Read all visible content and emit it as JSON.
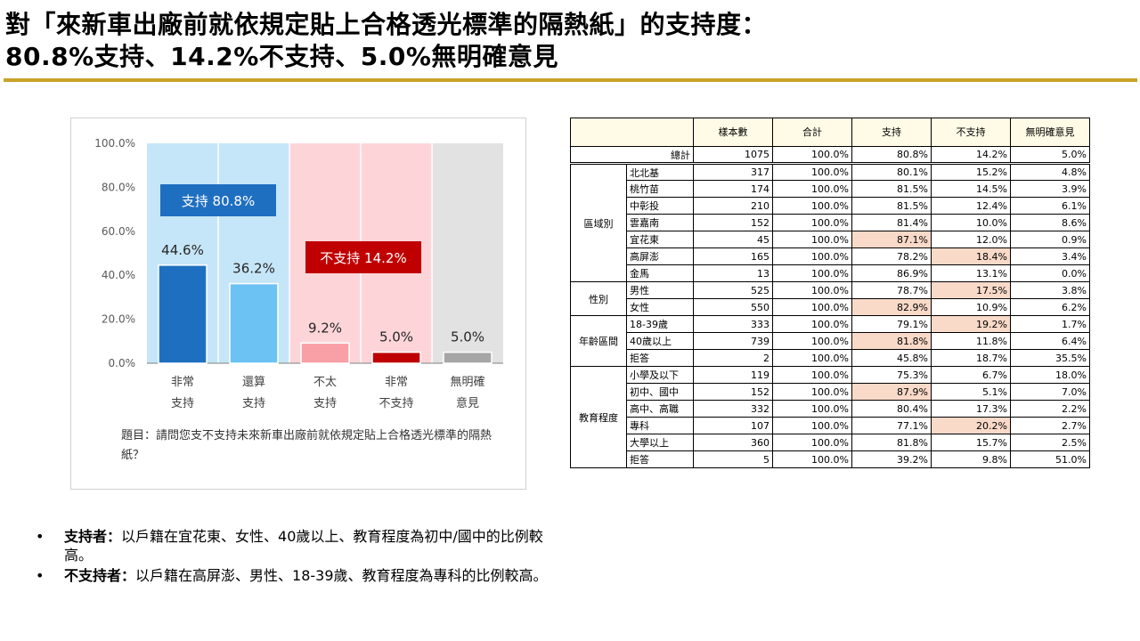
{
  "title": {
    "line1": "對「來新車出廠前就依規定貼上合格透光標準的隔熱紙」的支持度：",
    "line2": "80.8%支持、14.2%不支持、5.0%無明確意見"
  },
  "colors": {
    "accent_rule": "#c9a227",
    "support_bg": "#c5e6f8",
    "oppose_bg": "#fdd5d9",
    "neutral_bg": "#e2e2e2",
    "bar_strong_support": "#1f6fc1",
    "bar_support": "#6cc3f3",
    "bar_weak_oppose": "#f9a0a6",
    "bar_strong_oppose": "#c00000",
    "bar_neutral": "#a6a6a6",
    "highlight": "#f9d9c8"
  },
  "chart_data": {
    "type": "bar",
    "categories": [
      [
        "非常",
        "支持"
      ],
      [
        "還算",
        "支持"
      ],
      [
        "不太",
        "支持"
      ],
      [
        "非常",
        "不支持"
      ],
      [
        "無明確",
        "意見"
      ]
    ],
    "values": [
      44.6,
      36.2,
      9.2,
      5.0,
      5.0
    ],
    "value_labels": [
      "44.6%",
      "36.2%",
      "9.2%",
      "5.0%",
      "5.0%"
    ],
    "ylim": [
      0,
      100
    ],
    "yticks": [
      "0.0%",
      "20.0%",
      "40.0%",
      "60.0%",
      "80.0%",
      "100.0%"
    ],
    "group_labels": {
      "support": "支持 80.8%",
      "oppose": "不支持 14.2%"
    },
    "grid": false,
    "legend": "none"
  },
  "chart_note": "題目：請問您支不支持未來新車出廠前就依規定貼上合格透光標準的隔熱紙？",
  "table": {
    "headers": [
      "",
      "",
      "樣本數",
      "合計",
      "支持",
      "不支持",
      "無明確意見"
    ],
    "total": {
      "label": "總計",
      "values": [
        "1075",
        "100.0%",
        "80.8%",
        "14.2%",
        "5.0%"
      ]
    },
    "groups": [
      {
        "name": "區域別",
        "rows": [
          {
            "label": "北北基",
            "values": [
              "317",
              "100.0%",
              "80.1%",
              "15.2%",
              "4.8%"
            ]
          },
          {
            "label": "桃竹苗",
            "values": [
              "174",
              "100.0%",
              "81.5%",
              "14.5%",
              "3.9%"
            ]
          },
          {
            "label": "中彰投",
            "values": [
              "210",
              "100.0%",
              "81.5%",
              "12.4%",
              "6.1%"
            ]
          },
          {
            "label": "雲嘉南",
            "values": [
              "152",
              "100.0%",
              "81.4%",
              "10.0%",
              "8.6%"
            ]
          },
          {
            "label": "宜花東",
            "values": [
              "45",
              "100.0%",
              "87.1%",
              "12.0%",
              "0.9%"
            ],
            "hl": [
              2
            ]
          },
          {
            "label": "高屏澎",
            "values": [
              "165",
              "100.0%",
              "78.2%",
              "18.4%",
              "3.4%"
            ],
            "hl": [
              3
            ]
          },
          {
            "label": "金馬",
            "values": [
              "13",
              "100.0%",
              "86.9%",
              "13.1%",
              "0.0%"
            ]
          }
        ]
      },
      {
        "name": "性別",
        "rows": [
          {
            "label": "男性",
            "values": [
              "525",
              "100.0%",
              "78.7%",
              "17.5%",
              "3.8%"
            ],
            "hl": [
              3
            ]
          },
          {
            "label": "女性",
            "values": [
              "550",
              "100.0%",
              "82.9%",
              "10.9%",
              "6.2%"
            ],
            "hl": [
              2
            ]
          }
        ]
      },
      {
        "name": "年齡區間",
        "rows": [
          {
            "label": "18-39歲",
            "values": [
              "333",
              "100.0%",
              "79.1%",
              "19.2%",
              "1.7%"
            ],
            "hl": [
              3
            ]
          },
          {
            "label": "40歲以上",
            "values": [
              "739",
              "100.0%",
              "81.8%",
              "11.8%",
              "6.4%"
            ],
            "hl": [
              2
            ]
          },
          {
            "label": "拒答",
            "values": [
              "2",
              "100.0%",
              "45.8%",
              "18.7%",
              "35.5%"
            ]
          }
        ]
      },
      {
        "name": "教育程度",
        "rows": [
          {
            "label": "小學及以下",
            "values": [
              "119",
              "100.0%",
              "75.3%",
              "6.7%",
              "18.0%"
            ]
          },
          {
            "label": "初中、國中",
            "values": [
              "152",
              "100.0%",
              "87.9%",
              "5.1%",
              "7.0%"
            ],
            "hl": [
              2
            ]
          },
          {
            "label": "高中、高職",
            "values": [
              "332",
              "100.0%",
              "80.4%",
              "17.3%",
              "2.2%"
            ]
          },
          {
            "label": "專科",
            "values": [
              "107",
              "100.0%",
              "77.1%",
              "20.2%",
              "2.7%"
            ],
            "hl": [
              3
            ]
          },
          {
            "label": "大學以上",
            "values": [
              "360",
              "100.0%",
              "81.8%",
              "15.7%",
              "2.5%"
            ]
          },
          {
            "label": "拒答",
            "values": [
              "5",
              "100.0%",
              "39.2%",
              "9.8%",
              "51.0%"
            ]
          }
        ]
      }
    ]
  },
  "bullets": [
    {
      "head": "支持者：",
      "text": "以戶籍在宜花東、女性、40歲以上、教育程度為初中/國中的比例較高。"
    },
    {
      "head": "不支持者：",
      "text": "以戶籍在高屏澎、男性、18-39歲、教育程度為專科的比例較高。"
    }
  ],
  "bullet_symbol": "•"
}
